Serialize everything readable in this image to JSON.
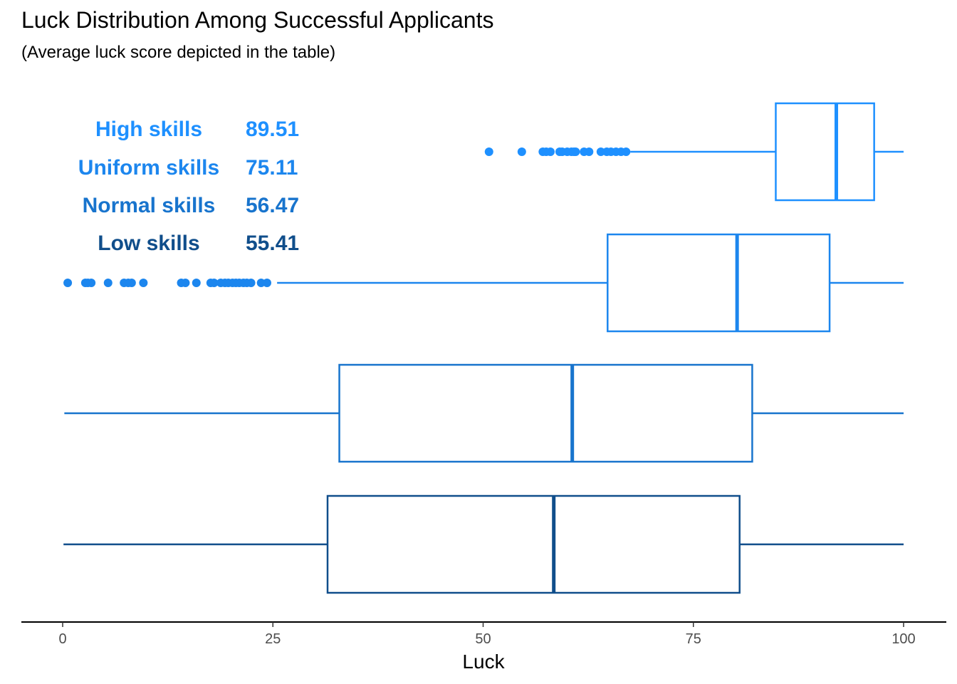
{
  "chart_data": {
    "type": "boxplot",
    "orientation": "horizontal",
    "title": "Luck Distribution Among Successful Applicants",
    "subtitle": "(Average luck score depicted in the table)",
    "xlabel": "Luck",
    "ylabel": "",
    "xlim": [
      0,
      100
    ],
    "xticks": [
      0,
      25,
      50,
      75,
      100
    ],
    "grid": false,
    "legend": "none",
    "table": [
      {
        "label": "High skills",
        "value": "89.51",
        "color": "#1E90FF"
      },
      {
        "label": "Uniform skills",
        "value": "75.11",
        "color": "#1C86EE"
      },
      {
        "label": "Normal skills",
        "value": "56.47",
        "color": "#1874CD"
      },
      {
        "label": "Low skills",
        "value": "55.41",
        "color": "#104E8B"
      }
    ],
    "series": [
      {
        "group": "High skills",
        "color": "#1E90FF",
        "whisker_low": 67.5,
        "q1": 84.8,
        "median": 92.0,
        "q3": 96.5,
        "whisker_high": 100,
        "outliers": [
          50.7,
          54.6,
          57.1,
          57.5,
          58.0,
          59.1,
          59.4,
          60.0,
          60.5,
          60.8,
          61.0,
          62.0,
          62.6,
          64.0,
          64.7,
          65.2,
          65.8,
          66.4,
          67.0
        ]
      },
      {
        "group": "Uniform skills",
        "color": "#1C86EE",
        "whisker_low": 25.5,
        "q1": 64.8,
        "median": 80.2,
        "q3": 91.2,
        "whisker_high": 100,
        "outliers": [
          0.6,
          2.7,
          3.0,
          3.4,
          5.4,
          7.3,
          7.8,
          8.2,
          9.6,
          14.1,
          14.6,
          15.9,
          17.6,
          18.0,
          18.8,
          19.3,
          19.7,
          20.2,
          20.6,
          21.0,
          21.5,
          21.9,
          22.4,
          23.6,
          24.3
        ]
      },
      {
        "group": "Normal skills",
        "color": "#1874CD",
        "whisker_low": 0.2,
        "q1": 32.9,
        "median": 60.6,
        "q3": 82.0,
        "whisker_high": 100,
        "outliers": []
      },
      {
        "group": "Low skills",
        "color": "#104E8B",
        "whisker_low": 0.1,
        "q1": 31.5,
        "median": 58.4,
        "q3": 80.5,
        "whisker_high": 100,
        "outliers": []
      }
    ]
  }
}
